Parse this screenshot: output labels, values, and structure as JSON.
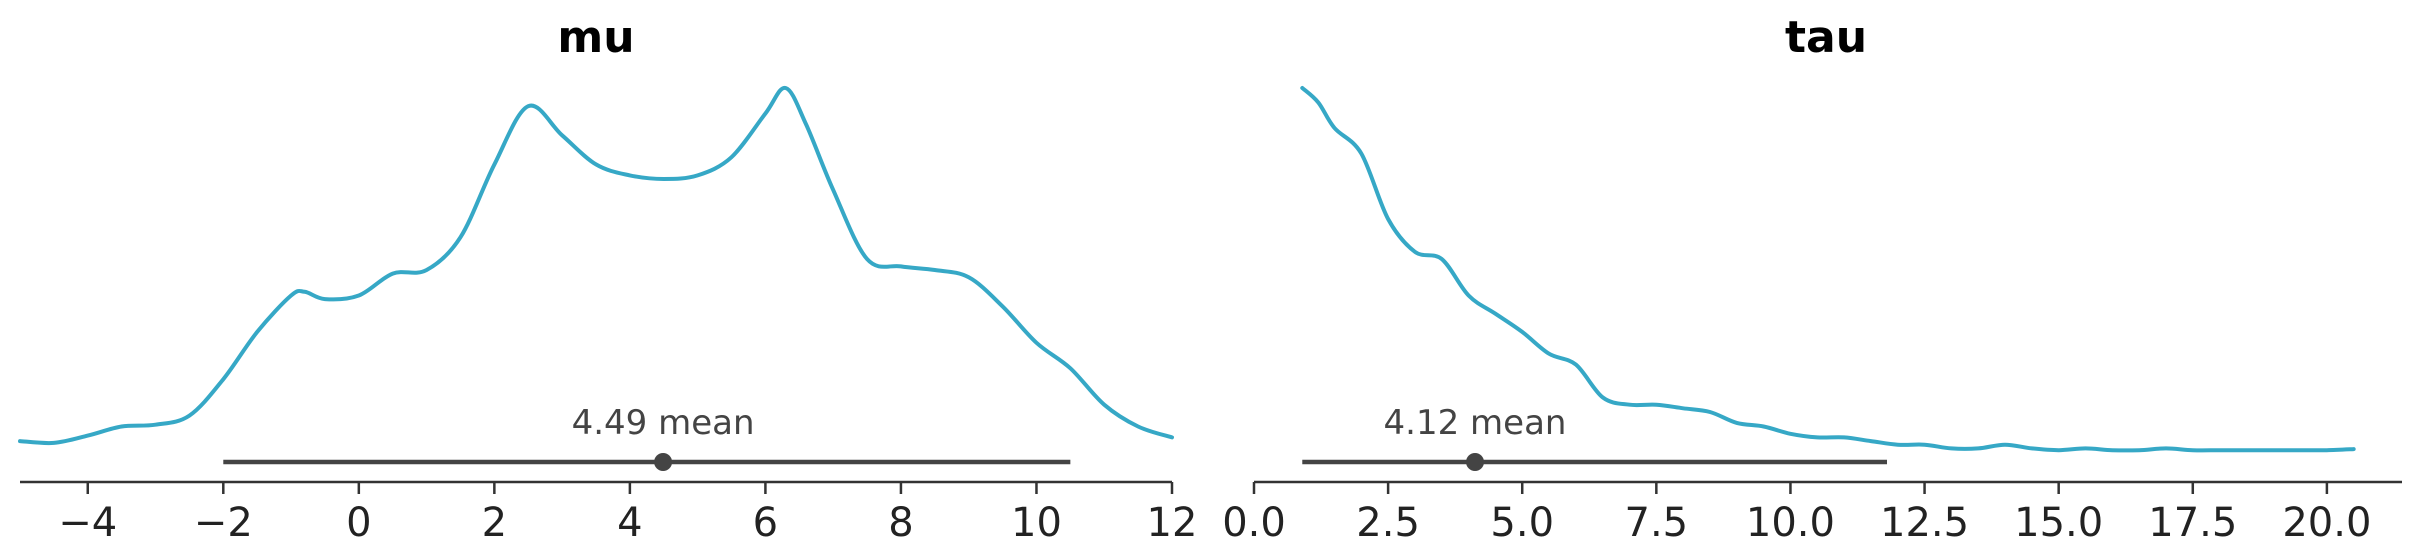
{
  "colors": {
    "kde": "#36a8c6",
    "interval": "#444444",
    "axis": "#333333"
  },
  "chart_data": [
    {
      "type": "area",
      "title": "mu",
      "xlim": [
        -5,
        12
      ],
      "xticks": [
        -4,
        -2,
        0,
        2,
        4,
        6,
        8,
        10,
        12
      ],
      "xtick_labels": [
        "−4",
        "−2",
        "0",
        "2",
        "4",
        "6",
        "8",
        "10",
        "12"
      ],
      "y_range": [
        0,
        1
      ],
      "hdi": [
        -2.0,
        10.5
      ],
      "mean": 4.49,
      "mean_label": "4.49 mean",
      "density": {
        "x": [
          -5.0,
          -4.5,
          -4.0,
          -3.5,
          -3.0,
          -2.5,
          -2.0,
          -1.5,
          -1.0,
          -0.8,
          -0.5,
          0.0,
          0.5,
          1.0,
          1.5,
          2.0,
          2.5,
          3.0,
          3.5,
          4.0,
          4.5,
          5.0,
          5.5,
          6.0,
          6.3,
          6.6,
          7.0,
          7.5,
          8.0,
          8.5,
          9.0,
          9.5,
          10.0,
          10.5,
          11.0,
          11.5,
          12.0
        ],
        "y": [
          0.03,
          0.025,
          0.045,
          0.07,
          0.075,
          0.1,
          0.2,
          0.33,
          0.43,
          0.44,
          0.42,
          0.43,
          0.49,
          0.5,
          0.59,
          0.79,
          0.95,
          0.87,
          0.79,
          0.76,
          0.75,
          0.76,
          0.81,
          0.93,
          1.0,
          0.9,
          0.72,
          0.53,
          0.51,
          0.5,
          0.48,
          0.4,
          0.3,
          0.23,
          0.13,
          0.07,
          0.04
        ]
      }
    },
    {
      "type": "area",
      "title": "tau",
      "xlim": [
        0,
        21.4
      ],
      "xticks": [
        0,
        2.5,
        5,
        7.5,
        10,
        12.5,
        15,
        17.5,
        20
      ],
      "xtick_labels": [
        "0.0",
        "2.5",
        "5.0",
        "7.5",
        "10.0",
        "12.5",
        "15.0",
        "17.5",
        "20.0"
      ],
      "y_range": [
        0,
        1
      ],
      "hdi": [
        0.9,
        11.8
      ],
      "mean": 4.12,
      "mean_label": "4.12 mean",
      "density": {
        "x": [
          0.9,
          1.2,
          1.5,
          2.0,
          2.5,
          3.0,
          3.5,
          4.0,
          4.5,
          5.0,
          5.5,
          6.0,
          6.5,
          7.0,
          7.5,
          8.0,
          8.5,
          9.0,
          9.5,
          10.0,
          10.5,
          11.0,
          11.5,
          12.0,
          12.5,
          13.0,
          13.5,
          14.0,
          14.5,
          15.0,
          15.5,
          16.0,
          16.5,
          17.0,
          17.5,
          18.0,
          18.5,
          19.0,
          19.5,
          20.0,
          20.5
        ],
        "y": [
          1.0,
          0.96,
          0.89,
          0.82,
          0.64,
          0.55,
          0.53,
          0.43,
          0.38,
          0.33,
          0.27,
          0.24,
          0.15,
          0.13,
          0.13,
          0.12,
          0.11,
          0.08,
          0.07,
          0.05,
          0.04,
          0.04,
          0.03,
          0.02,
          0.02,
          0.01,
          0.01,
          0.02,
          0.01,
          0.005,
          0.01,
          0.005,
          0.005,
          0.01,
          0.005,
          0.005,
          0.005,
          0.005,
          0.005,
          0.005,
          0.008
        ]
      }
    }
  ]
}
